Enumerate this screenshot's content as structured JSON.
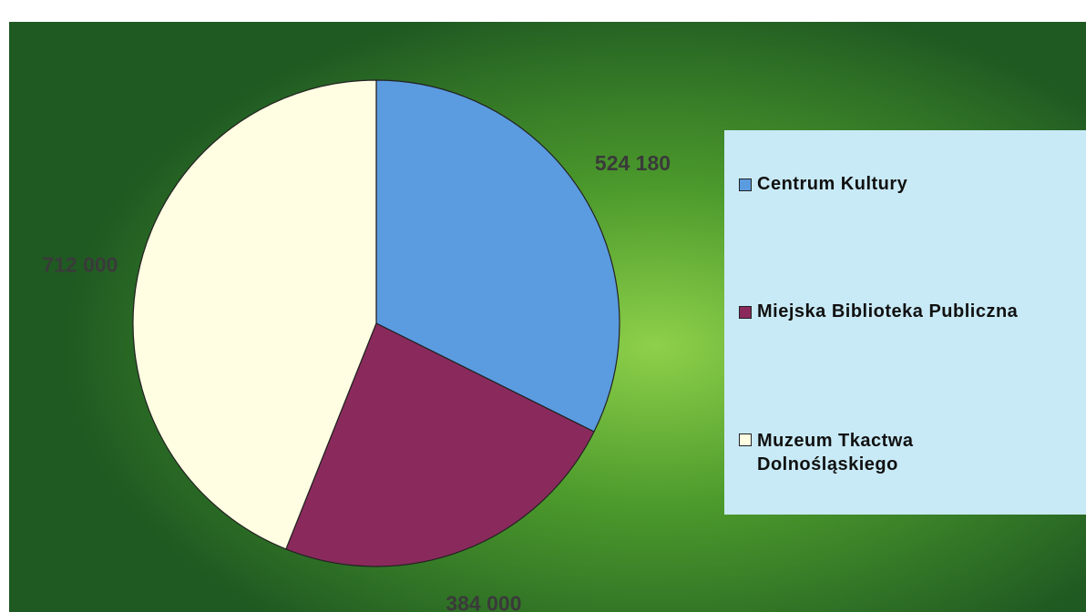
{
  "chart_data": {
    "type": "pie",
    "categories": [
      "Centrum Kultury",
      "Miejska Biblioteka Publiczna",
      "Muzeum Tkactwa Dolnośląskiego"
    ],
    "values": [
      524180,
      384000,
      712000
    ],
    "value_labels": [
      "524 180",
      "384 000",
      "712 000"
    ],
    "colors": [
      "#5b9be0",
      "#8a2a5c",
      "#fffde2"
    ],
    "legend": "right"
  }
}
